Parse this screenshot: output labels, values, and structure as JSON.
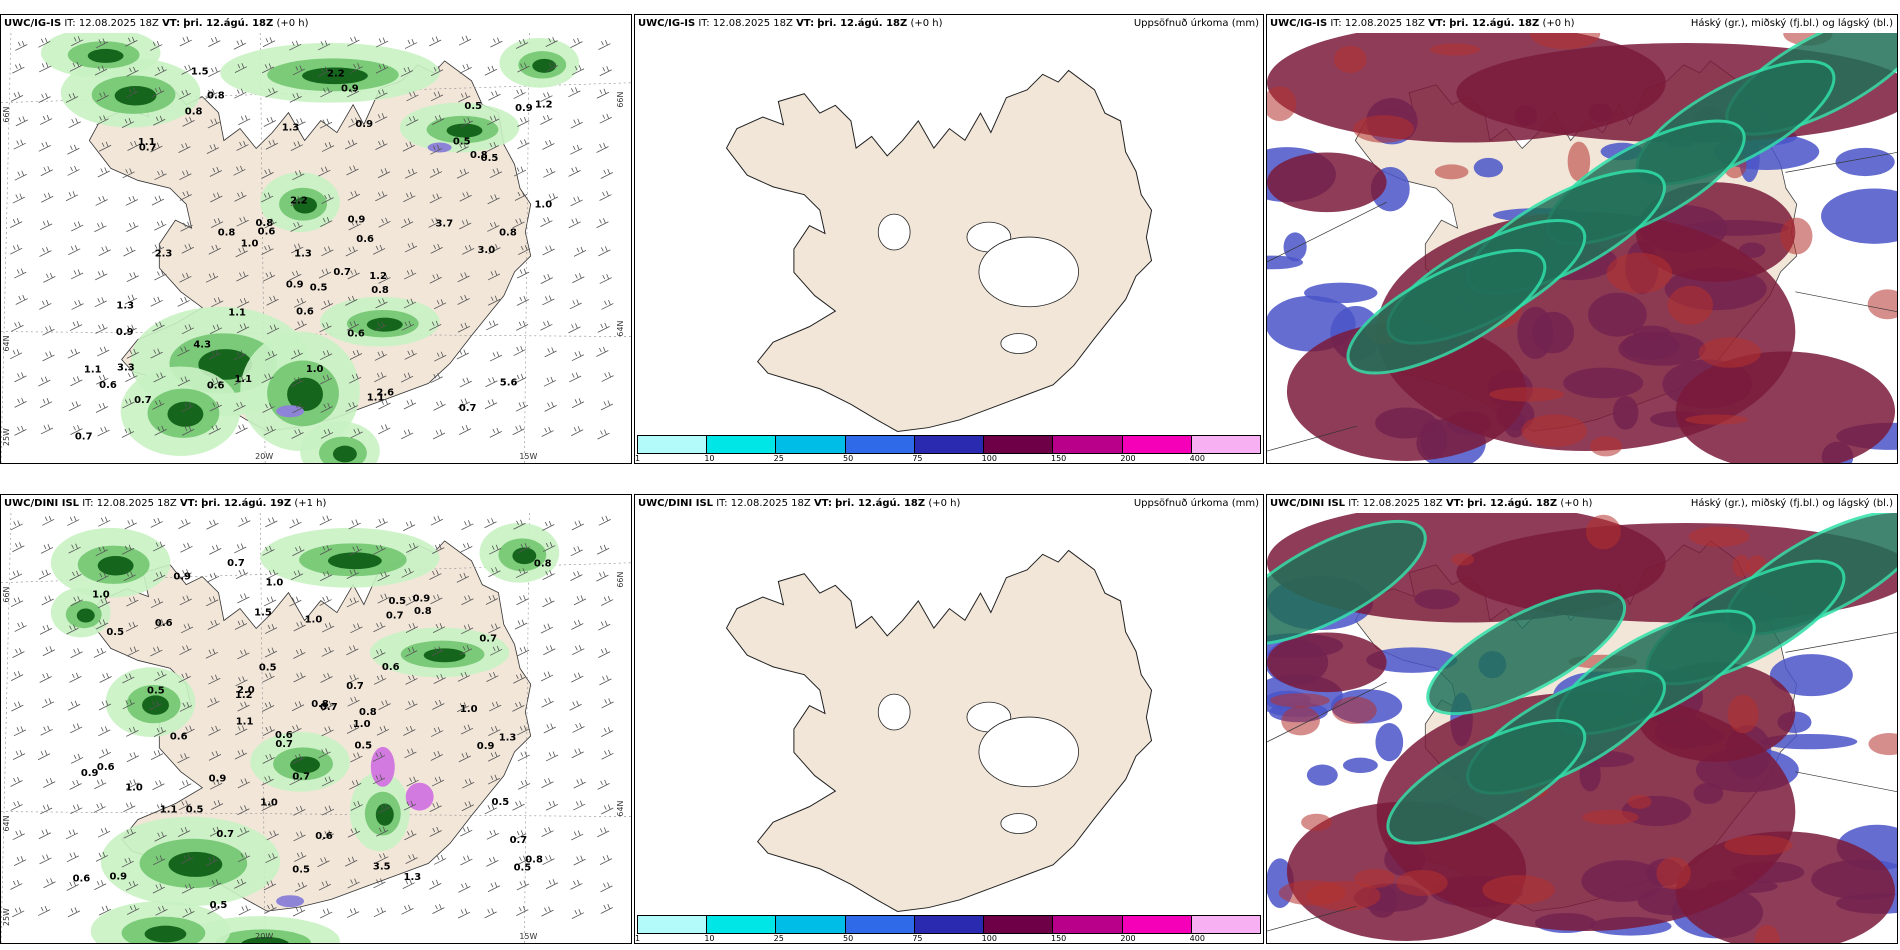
{
  "rows": [
    {
      "precip": {
        "model": "UWC/IG-IS",
        "it": "IT: 12.08.2025 18Z",
        "vt_label": "VT:",
        "vt_value": "þri. 12.ágú. 18Z",
        "lead": "(+0 h)",
        "values": [
          "0.8",
          "0.8",
          "0.6",
          "0.7",
          "0.9",
          "0.7",
          "0.6",
          "0.6",
          "1.1",
          "0.9",
          "0.5",
          "0.8",
          "1.1",
          "1.2",
          "1.1",
          "0.9",
          "0.7",
          "0.8",
          "2.2",
          "1.1",
          "1.3",
          "0.8",
          "3.7",
          "2.2",
          "0.9",
          "5.6",
          "4.3",
          "0.6",
          "1.0",
          "0.5",
          "0.7",
          "0.6",
          "1.0",
          "1.5",
          "0.6",
          "0.9",
          "0.5",
          "0.7",
          "1.3",
          "0.8",
          "3.3",
          "1.3",
          "1.0",
          "2.3",
          "3.0",
          "0.5",
          "0.9",
          "1.1",
          "1.2",
          "2.6",
          "0.8"
        ]
      },
      "accum": {
        "model": "UWC/IG-IS",
        "it": "IT: 12.08.2025 18Z",
        "vt_label": "VT:",
        "vt_value": "þri. 12.ágú. 18Z",
        "lead": "(+0 h)",
        "right": "Uppsöfnuð úrkoma (mm)"
      },
      "cloud": {
        "model": "UWC/IG-IS",
        "it": "IT: 12.08.2025 18Z",
        "vt_label": "VT:",
        "vt_value": "þri. 12.ágú. 18Z",
        "lead": "(+0 h)",
        "right": "Háský (gr.), miðský (fj.bl.) og lágský (bl.)"
      }
    },
    {
      "precip": {
        "model": "UWC/DINI ISL",
        "it": "IT: 12.08.2025 18Z",
        "vt_label": "VT:",
        "vt_value": "þri. 12.ágú. 19Z",
        "lead": "(+1 h)",
        "values": [
          "0.6",
          "0.5",
          "0.7",
          "0.8",
          "0.5",
          "1.0",
          "0.7",
          "0.6",
          "1.0",
          "0.7",
          "0.7",
          "0.6",
          "0.8",
          "0.5",
          "0.5",
          "0.5",
          "1.2",
          "0.9",
          "1.0",
          "0.8",
          "0.6",
          "0.9",
          "1.1",
          "1.3",
          "0.5",
          "0.6",
          "1.0",
          "0.5",
          "0.7",
          "0.8",
          "0.5",
          "0.9",
          "0.9",
          "0.7",
          "0.7",
          "1.0",
          "1.5",
          "3.5",
          "2.0",
          "1.0",
          "0.5",
          "0.6",
          "0.9",
          "1.1",
          "0.6",
          "0.5",
          "0.7",
          "1.3",
          "1.0",
          "0.9",
          "0.8",
          "0.7"
        ]
      },
      "accum": {
        "model": "UWC/DINI ISL",
        "it": "IT: 12.08.2025 18Z",
        "vt_label": "VT:",
        "vt_value": "þri. 12.ágú. 18Z",
        "lead": "(+0 h)",
        "right": "Uppsöfnuð úrkoma (mm)"
      },
      "cloud": {
        "model": "UWC/DINI ISL",
        "it": "IT: 12.08.2025 18Z",
        "vt_label": "VT:",
        "vt_value": "þri. 12.ágú. 18Z",
        "lead": "(+0 h)",
        "right": "Háský (gr.), miðský (fj.bl.) og lágský (bl.)"
      }
    }
  ],
  "axis_labels": {
    "lat66": "66N",
    "lat64": "64N",
    "lon25": "25W",
    "lon20": "20W",
    "lon15": "15W",
    "lat66_right": "66N",
    "lat64_right": "64N"
  },
  "colorbar": {
    "ticks": [
      "1",
      "10",
      "25",
      "50",
      "75",
      "100",
      "150",
      "200",
      "400"
    ],
    "colors": [
      "#b3fbfb",
      "#00e6e6",
      "#00bde8",
      "#2f6ae8",
      "#2a2ab0",
      "#6e0048",
      "#b8008a",
      "#f500b8",
      "#f7b0f2"
    ]
  },
  "colors": {
    "land": "#f2e6d9",
    "sea": "#ffffff",
    "precip_light": "#c9f2c3",
    "precip_mid": "#6cc36b",
    "precip_dark": "#0a5a12",
    "precip_purple": "#8d84d8",
    "precip_magenta": "#d27ae0",
    "high_cloud": "#216f58",
    "mid_cloud": "#7a1a3a",
    "low_cloud": "#4a55c8"
  }
}
